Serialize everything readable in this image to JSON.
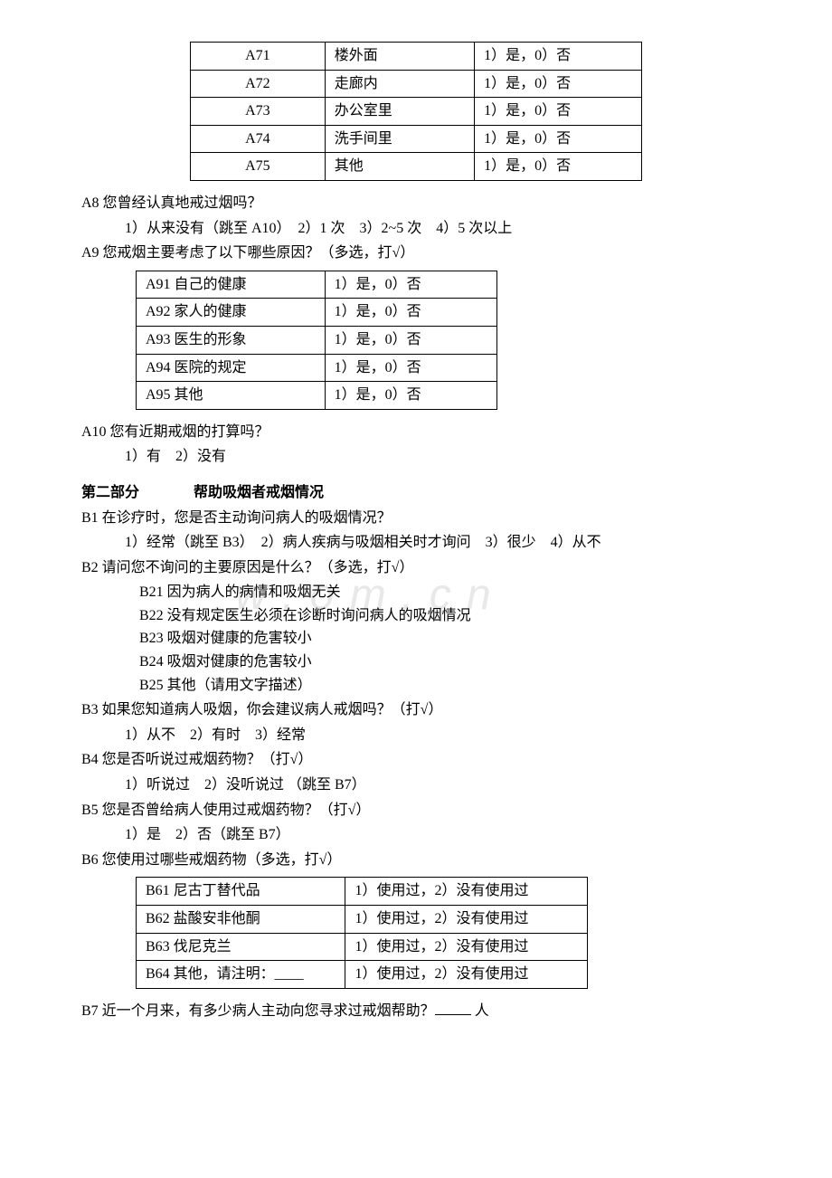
{
  "table1": {
    "rows": [
      {
        "code": "A71",
        "place": "楼外面",
        "choice": "1）是，0）否"
      },
      {
        "code": "A72",
        "place": "走廊内",
        "choice": "1）是，0）否"
      },
      {
        "code": "A73",
        "place": "办公室里",
        "choice": "1）是，0）否"
      },
      {
        "code": "A74",
        "place": "洗手间里",
        "choice": "1）是，0）否"
      },
      {
        "code": "A75",
        "place": "其他",
        "choice": "1）是，0）否"
      }
    ]
  },
  "a8": {
    "q": "A8 您曾经认真地戒过烟吗？",
    "opts": "1）从来没有（跳至 A10）　2）1 次　3）2~5 次　4）5 次以上"
  },
  "a9": {
    "q": "A9 您戒烟主要考虑了以下哪些原因？（多选，打√）",
    "rows": [
      {
        "label": "A91 自己的健康",
        "choice": "1）是，0）否"
      },
      {
        "label": "A92 家人的健康",
        "choice": "1）是，0）否"
      },
      {
        "label": "A93 医生的形象",
        "choice": "1）是，0）否"
      },
      {
        "label": "A94 医院的规定",
        "choice": "1）是，0）否"
      },
      {
        "label": "A95 其他",
        "choice": "1）是，0）否"
      }
    ]
  },
  "a10": {
    "q": "A10 您有近期戒烟的打算吗？",
    "opts": "1）有　2）没有"
  },
  "section2": {
    "label1": "第二部分",
    "label2": "帮助吸烟者戒烟情况"
  },
  "b1": {
    "q": "B1 在诊疗时，您是否主动询问病人的吸烟情况？",
    "opts": "1）经常（跳至 B3）　2）病人疾病与吸烟相关时才询问　3）很少　4）从不"
  },
  "b2": {
    "q": "B2 请问您不询问的主要原因是什么？（多选，打√）",
    "items": [
      "B21 因为病人的病情和吸烟无关",
      "B22 没有规定医生必须在诊断时询问病人的吸烟情况",
      "B23 吸烟对健康的危害较小",
      "B24 吸烟对健康的危害较小",
      "B25 其他（请用文字描述）"
    ]
  },
  "b3": {
    "q": "B3 如果您知道病人吸烟，你会建议病人戒烟吗？（打√）",
    "opts": "1）从不　2）有时　3）经常"
  },
  "b4": {
    "q": "B4 您是否听说过戒烟药物？（打√）",
    "opts": "1）听说过　2）没听说过 （跳至 B7）"
  },
  "b5": {
    "q": "B5 您是否曾给病人使用过戒烟药物？（打√）",
    "opts": "1）是　2）否（跳至 B7）"
  },
  "b6": {
    "q": "B6 您使用过哪些戒烟药物（多选，打√）",
    "rows": [
      {
        "label": "B61 尼古丁替代品",
        "choice": "1）使用过，2）没有使用过"
      },
      {
        "label": "B62 盐酸安非他酮",
        "choice": "1）使用过，2）没有使用过"
      },
      {
        "label": "B63 伐尼克兰",
        "choice": "1）使用过，2）没有使用过"
      },
      {
        "label": "B64 其他，请注明：____",
        "choice": "1）使用过，2）没有使用过"
      }
    ]
  },
  "b7": {
    "pre": "B7 近一个月来，有多少病人主动向您寻求过戒烟帮助？",
    "suf": " 人"
  },
  "watermark": "w . o m . c n"
}
